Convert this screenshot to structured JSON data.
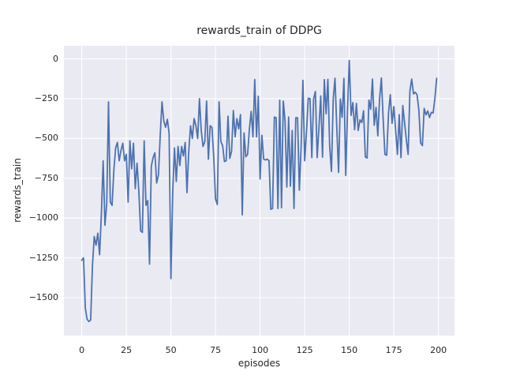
{
  "chart_data": {
    "type": "line",
    "title": "rewards_train of DDPG",
    "xlabel": "episodes",
    "ylabel": "rewards_train",
    "xlim": [
      -10,
      209
    ],
    "ylim": [
      -1738,
      82
    ],
    "grid": true,
    "legend": false,
    "xticks": {
      "values": [
        0,
        25,
        50,
        75,
        100,
        125,
        150,
        175,
        200
      ],
      "labels": [
        "0",
        "25",
        "50",
        "75",
        "100",
        "125",
        "150",
        "175",
        "200"
      ]
    },
    "yticks": {
      "values": [
        0,
        -250,
        -500,
        -750,
        -1000,
        -1250,
        -1500
      ],
      "labels": [
        "0",
        "−250",
        "−500",
        "−750",
        "−1000",
        "−1250",
        "−1500"
      ]
    },
    "style": {
      "fig_bg": "#ffffff",
      "plot_bg": "#eaeaf2",
      "grid_color": "#ffffff",
      "text_color": "#262626",
      "line_color": "#4c72b0",
      "line_width": 1.8
    },
    "series": [
      {
        "name": "rewards_train",
        "color": "#4c72b0",
        "x_start": 0,
        "x_step": 1,
        "values": [
          -1265,
          -1250,
          -1565,
          -1635,
          -1650,
          -1640,
          -1300,
          -1115,
          -1170,
          -1095,
          -1230,
          -975,
          -640,
          -1045,
          -910,
          -270,
          -900,
          -920,
          -700,
          -560,
          -525,
          -640,
          -575,
          -530,
          -640,
          -600,
          -900,
          -515,
          -690,
          -530,
          -815,
          -655,
          -830,
          -1080,
          -1090,
          -515,
          -920,
          -890,
          -1290,
          -675,
          -620,
          -590,
          -780,
          -730,
          -480,
          -270,
          -390,
          -430,
          -380,
          -470,
          -1380,
          -840,
          -560,
          -770,
          -550,
          -670,
          -550,
          -610,
          -525,
          -840,
          -580,
          -420,
          -500,
          -375,
          -420,
          -500,
          -250,
          -450,
          -550,
          -520,
          -265,
          -630,
          -420,
          -430,
          -615,
          -880,
          -915,
          -270,
          -520,
          -545,
          -645,
          -640,
          -360,
          -625,
          -580,
          -325,
          -490,
          -375,
          -440,
          -350,
          -980,
          -465,
          -615,
          -600,
          -440,
          -330,
          -490,
          -130,
          -490,
          -235,
          -755,
          -480,
          -630,
          -635,
          -630,
          -640,
          -945,
          -940,
          -365,
          -370,
          -940,
          -260,
          -935,
          -265,
          -390,
          -805,
          -365,
          -800,
          -450,
          -940,
          -370,
          -370,
          -825,
          -550,
          -135,
          -640,
          -460,
          -247,
          -250,
          -620,
          -252,
          -205,
          -620,
          -430,
          -233,
          -618,
          -130,
          -345,
          -128,
          -545,
          -707,
          -252,
          -122,
          -434,
          -713,
          -252,
          -367,
          -122,
          -732,
          -330,
          -10,
          -355,
          -275,
          -445,
          -280,
          -450,
          -383,
          -400,
          -326,
          -616,
          -623,
          -259,
          -317,
          -127,
          -417,
          -305,
          -483,
          -250,
          -120,
          -380,
          -600,
          -605,
          -340,
          -225,
          -405,
          -300,
          -450,
          -600,
          -350,
          -620,
          -293,
          -400,
          -508,
          -600,
          -201,
          -127,
          -220,
          -210,
          -225,
          -320,
          -528,
          -545,
          -311,
          -352,
          -327,
          -369,
          -336,
          -340,
          -250,
          -122
        ]
      }
    ]
  }
}
